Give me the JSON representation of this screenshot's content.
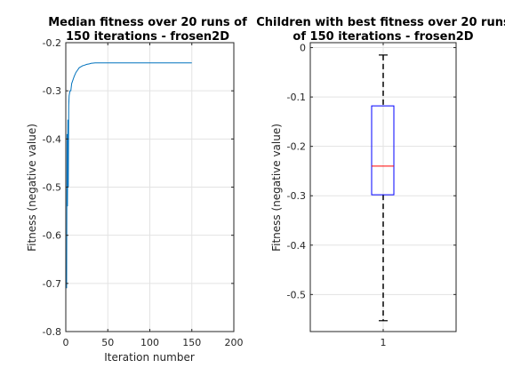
{
  "chart_data": [
    {
      "type": "line",
      "title_lines": [
        "Median fitness over 20 runs of",
        "150 iterations - frosen2D"
      ],
      "xlabel": "Iteration number",
      "ylabel": "Fitness (negative value)",
      "xlim": [
        0,
        200
      ],
      "ylim": [
        -0.8,
        -0.2
      ],
      "xticks": [
        "0",
        "50",
        "100",
        "150",
        "200"
      ],
      "yticks": [
        "-0.8",
        "-0.7",
        "-0.6",
        "-0.5",
        "-0.4",
        "-0.3",
        "-0.2"
      ],
      "grid": true,
      "line_color": "#0072bd",
      "series": [
        {
          "x": [
            1,
            1.5,
            2,
            2.5,
            3,
            3.5,
            4,
            5,
            6,
            7,
            8,
            9,
            10,
            12,
            14,
            16,
            18,
            20,
            22,
            25,
            28,
            30,
            35,
            40,
            50,
            60,
            80,
            100,
            120,
            150
          ],
          "y": [
            -0.71,
            -0.39,
            -0.54,
            -0.36,
            -0.5,
            -0.33,
            -0.31,
            -0.3,
            -0.3,
            -0.285,
            -0.28,
            -0.275,
            -0.27,
            -0.262,
            -0.257,
            -0.252,
            -0.25,
            -0.248,
            -0.247,
            -0.245,
            -0.244,
            -0.243,
            -0.242,
            -0.242,
            -0.242,
            -0.242,
            -0.242,
            -0.242,
            -0.242,
            -0.242
          ]
        }
      ]
    },
    {
      "type": "box",
      "title_lines": [
        "Children with best fitness over 20 runs",
        "of 150 iterations - frosen2D"
      ],
      "xlabel": "",
      "ylabel": "Fitness (negative value)",
      "categories": [
        "1"
      ],
      "ylim": [
        -0.575,
        0.01
      ],
      "yticks": [
        "0",
        "-0.1",
        "-0.2",
        "-0.3",
        "-0.4",
        "-0.5"
      ],
      "grid": true,
      "box": {
        "whisker_high": -0.015,
        "q3": -0.118,
        "median": -0.24,
        "q1": -0.298,
        "whisker_low": -0.553
      },
      "box_color": "#0000ff",
      "median_color": "#ff0000"
    }
  ]
}
